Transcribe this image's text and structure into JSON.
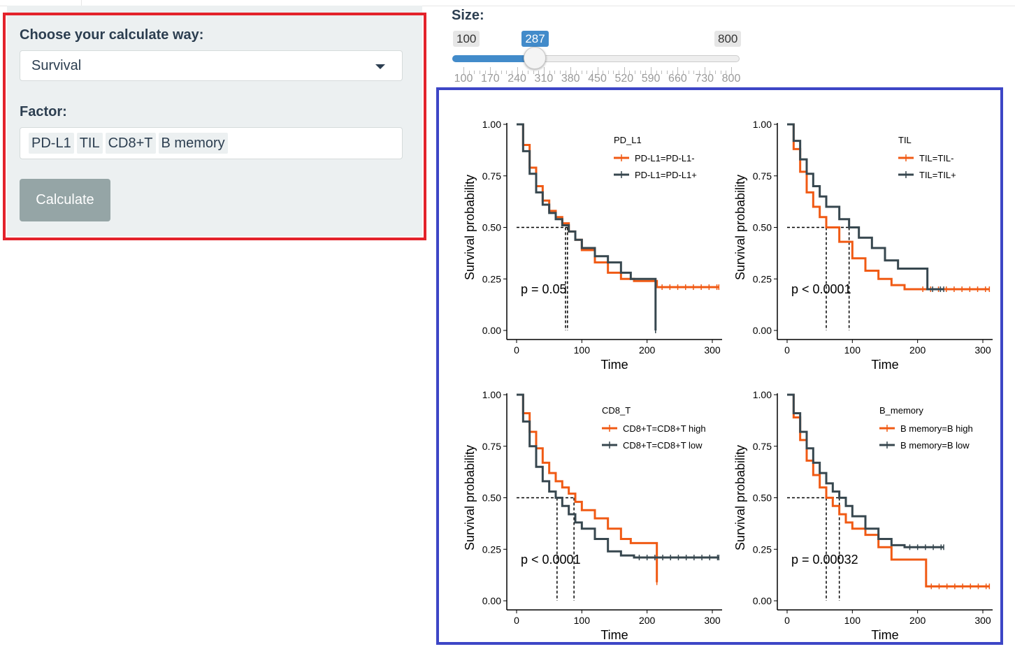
{
  "form": {
    "calc_label": "Choose your calculate way:",
    "calc_value": "Survival",
    "factor_label": "Factor:",
    "factors": [
      "PD-L1",
      "TIL",
      "CD8+T",
      "B memory"
    ],
    "button_label": "Calculate",
    "highlight_color": "#e3222b"
  },
  "slider": {
    "label": "Size:",
    "min": 100,
    "max": 800,
    "value": 287,
    "min_label": "100",
    "max_label": "800",
    "value_label": "287",
    "ticks": [
      "100",
      "170",
      "240",
      "310",
      "380",
      "450",
      "520",
      "590",
      "660",
      "730",
      "800"
    ]
  },
  "plots_border_color": "#3d46c6",
  "chart_data": [
    {
      "type": "line",
      "legend_title": "PD_L1",
      "xlabel": "Time",
      "ylabel": "Survival probability",
      "xlim": [
        0,
        300
      ],
      "ylim": [
        0,
        1
      ],
      "xticks": [
        "0",
        "100",
        "200",
        "300"
      ],
      "yticks": [
        "0.00",
        "0.25",
        "0.50",
        "0.75",
        "1.00"
      ],
      "pvalue": "p = 0.05",
      "medians": [
        75,
        78
      ],
      "series": [
        {
          "name": "PD-L1=PD-L1-",
          "color": "#f05a14",
          "points": [
            [
              0,
              1
            ],
            [
              10,
              0.9
            ],
            [
              20,
              0.79
            ],
            [
              30,
              0.7
            ],
            [
              40,
              0.63
            ],
            [
              50,
              0.58
            ],
            [
              60,
              0.55
            ],
            [
              70,
              0.52
            ],
            [
              80,
              0.48
            ],
            [
              90,
              0.44
            ],
            [
              100,
              0.39
            ],
            [
              120,
              0.33
            ],
            [
              140,
              0.28
            ],
            [
              160,
              0.25
            ],
            [
              180,
              0.24
            ],
            [
              200,
              0.24
            ],
            [
              215,
              0.21
            ],
            [
              310,
              0.21
            ]
          ]
        },
        {
          "name": "PD-L1=PD-L1+",
          "color": "#37474f",
          "points": [
            [
              0,
              1
            ],
            [
              10,
              0.87
            ],
            [
              20,
              0.76
            ],
            [
              30,
              0.67
            ],
            [
              40,
              0.61
            ],
            [
              50,
              0.57
            ],
            [
              60,
              0.54
            ],
            [
              70,
              0.51
            ],
            [
              80,
              0.48
            ],
            [
              90,
              0.44
            ],
            [
              100,
              0.4
            ],
            [
              120,
              0.36
            ],
            [
              140,
              0.33
            ],
            [
              160,
              0.28
            ],
            [
              175,
              0.25
            ],
            [
              200,
              0.25
            ],
            [
              213,
              0.25
            ],
            [
              213,
              0.0
            ]
          ]
        }
      ]
    },
    {
      "type": "line",
      "legend_title": "TIL",
      "xlabel": "Time",
      "ylabel": "Survival probability",
      "xlim": [
        0,
        300
      ],
      "ylim": [
        0,
        1
      ],
      "xticks": [
        "0",
        "100",
        "200",
        "300"
      ],
      "yticks": [
        "0.00",
        "0.25",
        "0.50",
        "0.75",
        "1.00"
      ],
      "pvalue": "p < 0.0001",
      "medians": [
        60,
        95
      ],
      "series": [
        {
          "name": "TIL=TIL-",
          "color": "#f05a14",
          "points": [
            [
              0,
              1
            ],
            [
              10,
              0.88
            ],
            [
              20,
              0.77
            ],
            [
              30,
              0.67
            ],
            [
              40,
              0.6
            ],
            [
              50,
              0.55
            ],
            [
              60,
              0.5
            ],
            [
              80,
              0.43
            ],
            [
              100,
              0.35
            ],
            [
              120,
              0.29
            ],
            [
              140,
              0.25
            ],
            [
              160,
              0.22
            ],
            [
              180,
              0.2
            ],
            [
              200,
              0.2
            ],
            [
              310,
              0.2
            ]
          ]
        },
        {
          "name": "TIL=TIL+",
          "color": "#37474f",
          "points": [
            [
              0,
              1
            ],
            [
              10,
              0.92
            ],
            [
              20,
              0.83
            ],
            [
              30,
              0.76
            ],
            [
              40,
              0.7
            ],
            [
              50,
              0.65
            ],
            [
              60,
              0.6
            ],
            [
              80,
              0.54
            ],
            [
              95,
              0.5
            ],
            [
              110,
              0.45
            ],
            [
              130,
              0.4
            ],
            [
              150,
              0.34
            ],
            [
              170,
              0.3
            ],
            [
              200,
              0.3
            ],
            [
              215,
              0.3
            ],
            [
              215,
              0.2
            ],
            [
              240,
              0.2
            ]
          ]
        }
      ]
    },
    {
      "type": "line",
      "legend_title": "CD8_T",
      "xlabel": "Time",
      "ylabel": "Survival probability",
      "xlim": [
        0,
        300
      ],
      "ylim": [
        0,
        1
      ],
      "xticks": [
        "0",
        "100",
        "200",
        "300"
      ],
      "yticks": [
        "0.00",
        "0.25",
        "0.50",
        "0.75",
        "1.00"
      ],
      "pvalue": "p < 0.0001",
      "medians": [
        62,
        88
      ],
      "series": [
        {
          "name": "CD8+T=CD8+T high",
          "color": "#f05a14",
          "points": [
            [
              0,
              1
            ],
            [
              10,
              0.91
            ],
            [
              20,
              0.82
            ],
            [
              30,
              0.74
            ],
            [
              40,
              0.67
            ],
            [
              50,
              0.62
            ],
            [
              60,
              0.58
            ],
            [
              70,
              0.55
            ],
            [
              80,
              0.52
            ],
            [
              90,
              0.48
            ],
            [
              100,
              0.44
            ],
            [
              120,
              0.4
            ],
            [
              140,
              0.35
            ],
            [
              160,
              0.3
            ],
            [
              175,
              0.28
            ],
            [
              215,
              0.28
            ],
            [
              215,
              0.09
            ]
          ]
        },
        {
          "name": "CD8+T=CD8+T low",
          "color": "#37474f",
          "points": [
            [
              0,
              1
            ],
            [
              10,
              0.87
            ],
            [
              20,
              0.75
            ],
            [
              30,
              0.65
            ],
            [
              40,
              0.58
            ],
            [
              50,
              0.53
            ],
            [
              60,
              0.5
            ],
            [
              70,
              0.46
            ],
            [
              80,
              0.42
            ],
            [
              90,
              0.38
            ],
            [
              100,
              0.35
            ],
            [
              120,
              0.3
            ],
            [
              140,
              0.24
            ],
            [
              160,
              0.22
            ],
            [
              180,
              0.21
            ],
            [
              310,
              0.21
            ]
          ]
        }
      ]
    },
    {
      "type": "line",
      "legend_title": "B_memory",
      "xlabel": "Time",
      "ylabel": "Survival probability",
      "xlim": [
        0,
        300
      ],
      "ylim": [
        0,
        1
      ],
      "xticks": [
        "0",
        "100",
        "200",
        "300"
      ],
      "yticks": [
        "0.00",
        "0.25",
        "0.50",
        "0.75",
        "1.00"
      ],
      "pvalue": "p = 0.00032",
      "medians": [
        60,
        80
      ],
      "series": [
        {
          "name": "B memory=B high",
          "color": "#f05a14",
          "points": [
            [
              0,
              1
            ],
            [
              10,
              0.89
            ],
            [
              20,
              0.78
            ],
            [
              30,
              0.68
            ],
            [
              40,
              0.61
            ],
            [
              50,
              0.55
            ],
            [
              60,
              0.5
            ],
            [
              70,
              0.46
            ],
            [
              80,
              0.42
            ],
            [
              90,
              0.38
            ],
            [
              100,
              0.35
            ],
            [
              120,
              0.32
            ],
            [
              140,
              0.26
            ],
            [
              160,
              0.2
            ],
            [
              180,
              0.2
            ],
            [
              213,
              0.2
            ],
            [
              213,
              0.07
            ],
            [
              310,
              0.07
            ]
          ]
        },
        {
          "name": "B memory=B low",
          "color": "#37474f",
          "points": [
            [
              0,
              1
            ],
            [
              10,
              0.91
            ],
            [
              20,
              0.82
            ],
            [
              30,
              0.74
            ],
            [
              40,
              0.67
            ],
            [
              50,
              0.62
            ],
            [
              60,
              0.57
            ],
            [
              70,
              0.53
            ],
            [
              80,
              0.5
            ],
            [
              90,
              0.46
            ],
            [
              100,
              0.41
            ],
            [
              120,
              0.35
            ],
            [
              140,
              0.3
            ],
            [
              160,
              0.27
            ],
            [
              180,
              0.26
            ],
            [
              240,
              0.26
            ]
          ]
        }
      ]
    }
  ]
}
